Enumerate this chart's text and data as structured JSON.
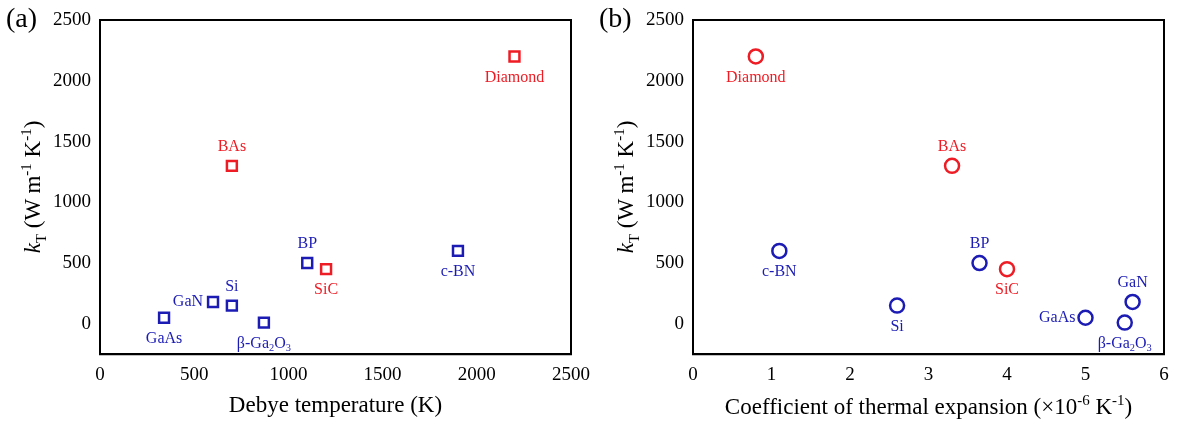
{
  "chart_data": [
    {
      "type": "scatter",
      "title": "(a)",
      "xlabel": "Debye temperature (K)",
      "ylabel": "k$_{T}$ (W m$^{-1}$ K$^{-1}$)",
      "series": [
        {
          "color": "#ee1c24",
          "x": [
            700,
            1200,
            2200
          ],
          "values": [
            1300,
            450,
            2200
          ]
        },
        {
          "color": "#1c1cb4",
          "x": [
            340,
            600,
            700,
            870,
            1100,
            1900
          ],
          "values": [
            50,
            180,
            150,
            10,
            500,
            600
          ]
        }
      ],
      "annotations": [
        {
          "text": "BAs",
          "x": 700,
          "y": 1300
        },
        {
          "text": "SiC",
          "x": 1200,
          "y": 450
        },
        {
          "text": "Diamond",
          "x": 2200,
          "y": 2200
        },
        {
          "text": "GaAs",
          "x": 340,
          "y": 50
        },
        {
          "text": "GaN",
          "x": 600,
          "y": 180
        },
        {
          "text": "Si",
          "x": 700,
          "y": 150
        },
        {
          "text": "β-Ga$_{2}$O$_{3}$",
          "x": 870,
          "y": 10
        },
        {
          "text": "BP",
          "x": 1100,
          "y": 500
        },
        {
          "text": "c-BN",
          "x": 1900,
          "y": 600
        }
      ],
      "xlim": [
        0,
        2500
      ],
      "xticks": [
        0,
        500,
        1000,
        1500,
        2000,
        2500
      ],
      "ylim": [
        -250,
        2500
      ],
      "yticks": [
        0,
        500,
        1000,
        1500,
        2000,
        2500
      ],
      "marker": "square",
      "grid": false,
      "legend": false
    },
    {
      "type": "scatter",
      "title": "(b)",
      "xlabel": "Coefficient of thermal expansion (×10$^{-6}$ K$^{-1}$)",
      "ylabel": "k$_{T}$ (W m$^{-1}$ K$^{-1}$)",
      "series": [
        {
          "color": "#ee1c24",
          "x": [
            0.8,
            3.3,
            4.0
          ],
          "values": [
            2200,
            1300,
            450
          ]
        },
        {
          "color": "#1c1cb4",
          "x": [
            1.1,
            2.6,
            3.65,
            5.0,
            5.5,
            5.6
          ],
          "values": [
            600,
            150,
            500,
            50,
            10,
            180
          ]
        }
      ],
      "annotations": [
        {
          "text": "Diamond",
          "x": 0.8,
          "y": 2200
        },
        {
          "text": "BAs",
          "x": 3.3,
          "y": 1300
        },
        {
          "text": "SiC",
          "x": 4.0,
          "y": 450
        },
        {
          "text": "c-BN",
          "x": 1.1,
          "y": 600
        },
        {
          "text": "Si",
          "x": 2.6,
          "y": 150
        },
        {
          "text": "BP",
          "x": 3.65,
          "y": 500
        },
        {
          "text": "GaAs",
          "x": 5.0,
          "y": 50
        },
        {
          "text": "β-Ga$_{2}$O$_{3}$",
          "x": 5.5,
          "y": 10
        },
        {
          "text": "GaN",
          "x": 5.6,
          "y": 180
        }
      ],
      "xlim": [
        0,
        6
      ],
      "xticks": [
        0,
        1,
        2,
        3,
        4,
        5,
        6
      ],
      "ylim": [
        -250,
        2500
      ],
      "yticks": [
        0,
        500,
        1000,
        1500,
        2000,
        2500
      ],
      "marker": "circle",
      "grid": false,
      "legend": false
    }
  ]
}
